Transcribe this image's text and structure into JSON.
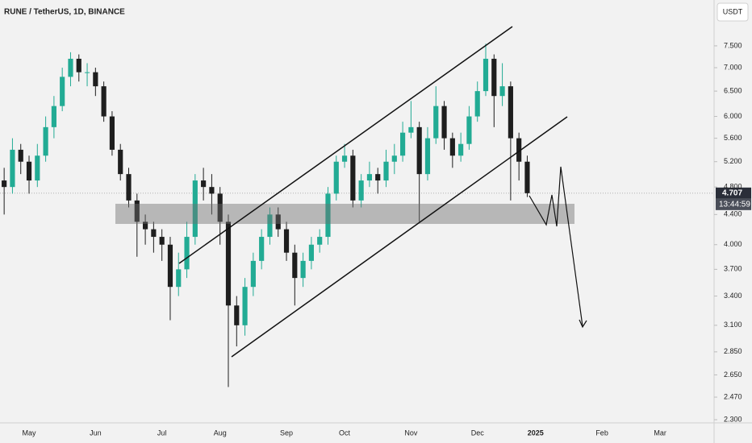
{
  "chart_data": {
    "type": "candlestick",
    "title": "RUNE / TetherUS, 1D, BINANCE",
    "currency": "USDT",
    "last_price": 4.707,
    "countdown": "13:44:59",
    "log": true,
    "grid": false,
    "up_color": "#22ab94",
    "down_color": "#1e1e1e",
    "ylim": [
      2.277,
      8.67
    ],
    "yticks": [
      {
        "value": 7.5,
        "label": "7.500"
      },
      {
        "value": 7,
        "label": "7.000"
      },
      {
        "value": 6.5,
        "label": "6.500"
      },
      {
        "value": 6,
        "label": "6.000"
      },
      {
        "value": 5.6,
        "label": "5.600"
      },
      {
        "value": 5.2,
        "label": "5.200"
      },
      {
        "value": 4.8,
        "label": "4.800"
      },
      {
        "value": 4.4,
        "label": "4.400"
      },
      {
        "value": 4,
        "label": "4.000"
      },
      {
        "value": 3.7,
        "label": "3.700"
      },
      {
        "value": 3.4,
        "label": "3.400"
      },
      {
        "value": 3.1,
        "label": "3.100"
      },
      {
        "value": 2.85,
        "label": "2.850"
      },
      {
        "value": 2.65,
        "label": "2.650"
      },
      {
        "value": 2.47,
        "label": "2.470"
      },
      {
        "value": 2.3,
        "label": "2.300"
      }
    ],
    "categories": [
      null,
      null,
      null,
      "May",
      null,
      null,
      null,
      null,
      null,
      null,
      null,
      "Jun",
      null,
      null,
      null,
      null,
      null,
      null,
      null,
      "Jul",
      null,
      null,
      null,
      null,
      null,
      null,
      "Aug",
      null,
      null,
      null,
      null,
      null,
      null,
      null,
      "Sep",
      null,
      null,
      null,
      null,
      null,
      null,
      "Oct",
      null,
      null,
      null,
      null,
      null,
      null,
      null,
      "Nov",
      null,
      null,
      null,
      null,
      null,
      null,
      null,
      "Dec",
      null,
      null,
      null,
      null,
      null,
      null,
      "2025",
      null,
      null,
      null,
      null,
      null,
      null,
      null,
      "Feb",
      null,
      null,
      null,
      null,
      null,
      null,
      "Mar",
      null,
      null,
      null,
      null,
      null,
      null
    ],
    "open": [
      4.9,
      4.8,
      5.4,
      5.2,
      4.9,
      5.3,
      5.8,
      6.2,
      6.8,
      7.2,
      6.9,
      6.9,
      6.6,
      6.0,
      5.4,
      5.0,
      4.6,
      4.3,
      4.2,
      4.1,
      4.0,
      3.5,
      3.7,
      4.1,
      4.9,
      4.8,
      4.7,
      4.3,
      3.3,
      3.1,
      3.5,
      3.8,
      4.1,
      4.4,
      4.2,
      3.9,
      3.6,
      3.8,
      4.0,
      4.1,
      4.7,
      5.2,
      5.3,
      4.6,
      4.9,
      5.0,
      4.9,
      5.2,
      5.3,
      5.7,
      5.8,
      5.0,
      5.6,
      6.2,
      5.6,
      5.3,
      5.5,
      6.0,
      6.5,
      7.2,
      6.4,
      6.6,
      5.6,
      5.2,
      null,
      null,
      null,
      null,
      null,
      null,
      null,
      null,
      null,
      null,
      null,
      null,
      null,
      null,
      null,
      null,
      null,
      null,
      null,
      null,
      null,
      null
    ],
    "high": [
      5.1,
      5.6,
      5.5,
      5.3,
      5.5,
      6.0,
      6.4,
      7.0,
      7.35,
      7.3,
      7.1,
      7.0,
      6.7,
      6.1,
      5.5,
      5.1,
      4.7,
      4.4,
      4.3,
      4.2,
      4.1,
      3.9,
      4.3,
      5.0,
      5.1,
      5.0,
      4.8,
      4.4,
      3.4,
      3.6,
      3.9,
      4.2,
      4.5,
      4.5,
      4.3,
      4.0,
      3.9,
      4.1,
      4.2,
      4.8,
      5.3,
      5.5,
      5.4,
      5.0,
      5.2,
      5.1,
      5.4,
      5.5,
      5.9,
      6.3,
      5.9,
      5.8,
      6.6,
      6.3,
      5.7,
      5.7,
      6.2,
      6.7,
      7.55,
      7.3,
      7.1,
      6.7,
      5.7,
      5.3,
      null,
      null,
      null,
      null,
      null,
      null,
      null,
      null,
      null,
      null,
      null,
      null,
      null,
      null,
      null,
      null,
      null,
      null,
      null,
      null,
      null,
      null
    ],
    "low": [
      4.4,
      4.7,
      5.0,
      4.7,
      4.8,
      5.2,
      5.6,
      6.1,
      6.6,
      6.7,
      6.6,
      6.4,
      5.9,
      5.3,
      4.9,
      4.5,
      3.85,
      4.0,
      3.9,
      3.8,
      3.15,
      3.4,
      3.6,
      4.0,
      4.6,
      4.4,
      4.0,
      2.55,
      2.9,
      3.0,
      3.4,
      3.7,
      4.0,
      4.1,
      3.8,
      3.3,
      3.5,
      3.7,
      3.9,
      4.0,
      4.6,
      5.1,
      4.5,
      4.5,
      4.8,
      4.7,
      4.8,
      5.0,
      5.2,
      5.6,
      4.3,
      4.9,
      5.5,
      5.4,
      5.1,
      5.2,
      5.4,
      5.9,
      6.4,
      5.8,
      6.2,
      4.6,
      4.9,
      4.65,
      null,
      null,
      null,
      null,
      null,
      null,
      null,
      null,
      null,
      null,
      null,
      null,
      null,
      null,
      null,
      null,
      null,
      null,
      null,
      null,
      null,
      null
    ],
    "close": [
      4.8,
      5.4,
      5.2,
      4.9,
      5.3,
      5.8,
      6.2,
      6.8,
      7.2,
      6.9,
      6.9,
      6.6,
      6.0,
      5.4,
      5.0,
      4.6,
      4.3,
      4.2,
      4.1,
      4.0,
      3.5,
      3.7,
      4.1,
      4.9,
      4.8,
      4.7,
      4.3,
      3.3,
      3.1,
      3.5,
      3.8,
      4.1,
      4.4,
      4.2,
      3.9,
      3.6,
      3.8,
      4.0,
      4.1,
      4.7,
      5.2,
      5.3,
      4.6,
      4.9,
      5.0,
      4.9,
      5.2,
      5.3,
      5.7,
      5.8,
      5.0,
      5.6,
      6.2,
      5.6,
      5.3,
      5.5,
      6.0,
      6.5,
      7.2,
      6.4,
      6.6,
      5.6,
      5.2,
      4.707,
      null,
      null,
      null,
      null,
      null,
      null,
      null,
      null,
      null,
      null,
      null,
      null,
      null,
      null,
      null,
      null,
      null,
      null,
      null,
      null,
      null,
      null
    ]
  }
}
